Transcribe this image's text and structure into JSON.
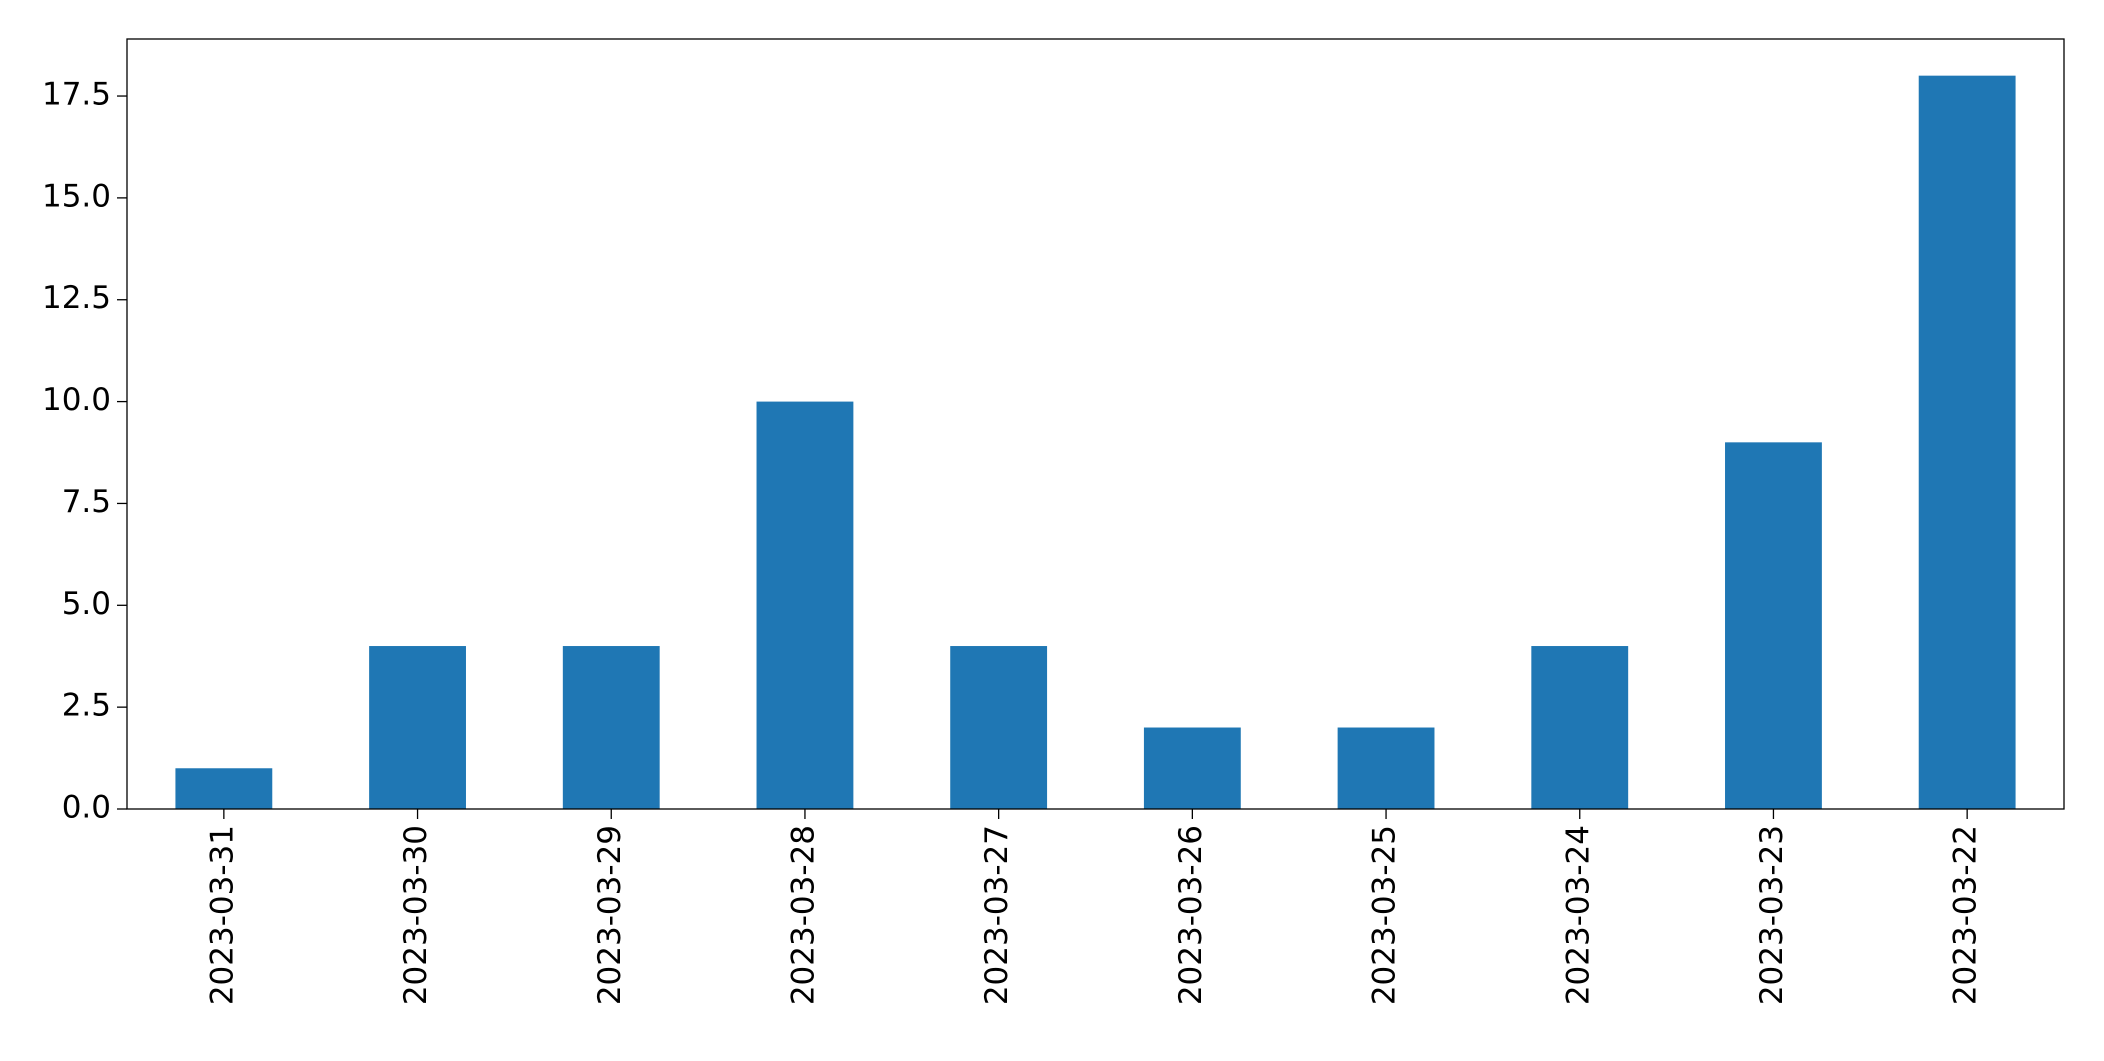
{
  "chart_data": {
    "type": "bar",
    "categories": [
      "2023-03-31",
      "2023-03-30",
      "2023-03-29",
      "2023-03-28",
      "2023-03-27",
      "2023-03-26",
      "2023-03-25",
      "2023-03-24",
      "2023-03-23",
      "2023-03-22"
    ],
    "values": [
      1,
      4,
      4,
      10,
      4,
      2,
      2,
      4,
      9,
      18
    ],
    "color": "#1f77b4",
    "ylim": [
      0,
      18.9
    ],
    "yticks": [
      {
        "value": 0,
        "label": "0.0"
      },
      2.5,
      {
        "value": 5,
        "label": "5.0"
      },
      7.5,
      {
        "value": 10,
        "label": "10.0"
      },
      12.5,
      {
        "value": 15,
        "label": "15.0"
      },
      17.5
    ],
    "grid": false
  }
}
